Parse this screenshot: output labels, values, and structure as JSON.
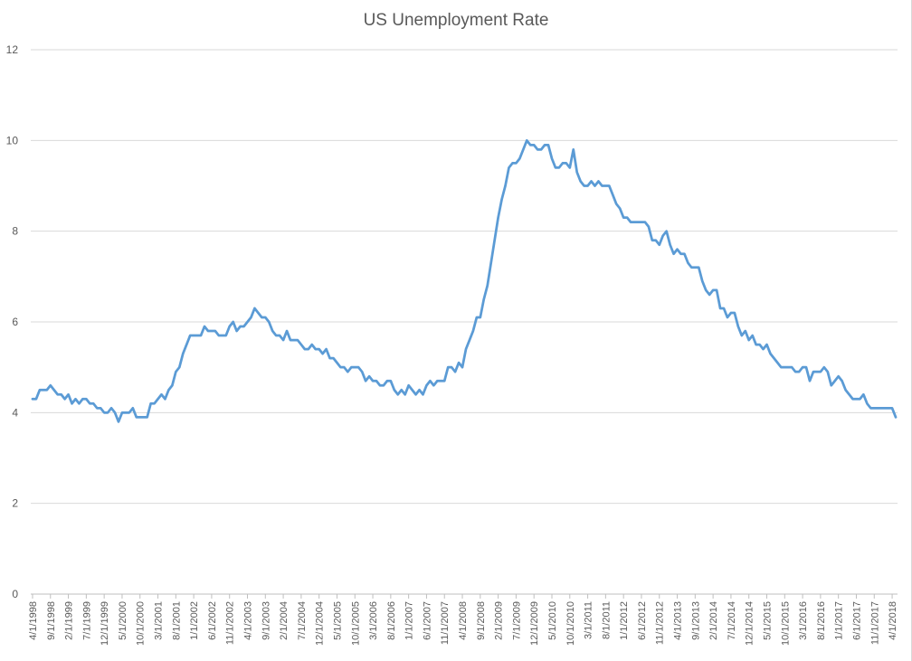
{
  "chart_data": {
    "type": "line",
    "title": "US Unemployment Rate",
    "xlabel": "",
    "ylabel": "",
    "ylim": [
      0,
      12
    ],
    "yticks": [
      0,
      2,
      4,
      6,
      8,
      10,
      12
    ],
    "grid": true,
    "legend": "none",
    "color": "#5b9bd5",
    "x_tick_labels": [
      "4/1/1998",
      "9/1/1998",
      "2/1/1999",
      "7/1/1999",
      "12/1/1999",
      "5/1/2000",
      "10/1/2000",
      "3/1/2001",
      "8/1/2001",
      "1/1/2002",
      "6/1/2002",
      "11/1/2002",
      "4/1/2003",
      "9/1/2003",
      "2/1/2004",
      "7/1/2004",
      "12/1/2004",
      "5/1/2005",
      "10/1/2005",
      "3/1/2006",
      "8/1/2006",
      "1/1/2007",
      "6/1/2007",
      "11/1/2007",
      "4/1/2008",
      "9/1/2008",
      "2/1/2009",
      "7/1/2009",
      "12/1/2009",
      "5/1/2010",
      "10/1/2010",
      "3/1/2011",
      "8/1/2011",
      "1/1/2012",
      "6/1/2012",
      "11/1/2012",
      "4/1/2013",
      "9/1/2013",
      "2/1/2014",
      "7/1/2014",
      "12/1/2014",
      "5/1/2015",
      "10/1/2015",
      "3/1/2016",
      "8/1/2016",
      "1/1/2017",
      "6/1/2017",
      "11/1/2017",
      "4/1/2018"
    ],
    "series": [
      {
        "start": "4/1/1998",
        "end": "5/1/2018",
        "frequency": "monthly",
        "values": [
          4.3,
          4.3,
          4.5,
          4.5,
          4.5,
          4.6,
          4.5,
          4.4,
          4.4,
          4.3,
          4.4,
          4.2,
          4.3,
          4.2,
          4.3,
          4.3,
          4.2,
          4.2,
          4.1,
          4.1,
          4.0,
          4.0,
          4.1,
          4.0,
          3.8,
          4.0,
          4.0,
          4.0,
          4.1,
          3.9,
          3.9,
          3.9,
          3.9,
          4.2,
          4.2,
          4.3,
          4.4,
          4.3,
          4.5,
          4.6,
          4.9,
          5.0,
          5.3,
          5.5,
          5.7,
          5.7,
          5.7,
          5.7,
          5.9,
          5.8,
          5.8,
          5.8,
          5.7,
          5.7,
          5.7,
          5.9,
          6.0,
          5.8,
          5.9,
          5.9,
          6.0,
          6.1,
          6.3,
          6.2,
          6.1,
          6.1,
          6.0,
          5.8,
          5.7,
          5.7,
          5.6,
          5.8,
          5.6,
          5.6,
          5.6,
          5.5,
          5.4,
          5.4,
          5.5,
          5.4,
          5.4,
          5.3,
          5.4,
          5.2,
          5.2,
          5.1,
          5.0,
          5.0,
          4.9,
          5.0,
          5.0,
          5.0,
          4.9,
          4.7,
          4.8,
          4.7,
          4.7,
          4.6,
          4.6,
          4.7,
          4.7,
          4.5,
          4.4,
          4.5,
          4.4,
          4.6,
          4.5,
          4.4,
          4.5,
          4.4,
          4.6,
          4.7,
          4.6,
          4.7,
          4.7,
          4.7,
          5.0,
          5.0,
          4.9,
          5.1,
          5.0,
          5.4,
          5.6,
          5.8,
          6.1,
          6.1,
          6.5,
          6.8,
          7.3,
          7.8,
          8.3,
          8.7,
          9.0,
          9.4,
          9.5,
          9.5,
          9.6,
          9.8,
          10.0,
          9.9,
          9.9,
          9.8,
          9.8,
          9.9,
          9.9,
          9.6,
          9.4,
          9.4,
          9.5,
          9.5,
          9.4,
          9.8,
          9.3,
          9.1,
          9.0,
          9.0,
          9.1,
          9.0,
          9.1,
          9.0,
          9.0,
          9.0,
          8.8,
          8.6,
          8.5,
          8.3,
          8.3,
          8.2,
          8.2,
          8.2,
          8.2,
          8.2,
          8.1,
          7.8,
          7.8,
          7.7,
          7.9,
          8.0,
          7.7,
          7.5,
          7.6,
          7.5,
          7.5,
          7.3,
          7.2,
          7.2,
          7.2,
          6.9,
          6.7,
          6.6,
          6.7,
          6.7,
          6.3,
          6.3,
          6.1,
          6.2,
          6.2,
          5.9,
          5.7,
          5.8,
          5.6,
          5.7,
          5.5,
          5.5,
          5.4,
          5.5,
          5.3,
          5.2,
          5.1,
          5.0,
          5.0,
          5.0,
          5.0,
          4.9,
          4.9,
          5.0,
          5.0,
          4.7,
          4.9,
          4.9,
          4.9,
          5.0,
          4.9,
          4.6,
          4.7,
          4.8,
          4.7,
          4.5,
          4.4,
          4.3,
          4.3,
          4.3,
          4.4,
          4.2,
          4.1,
          4.1,
          4.1,
          4.1,
          4.1,
          4.1,
          4.1,
          3.9
        ]
      }
    ]
  }
}
